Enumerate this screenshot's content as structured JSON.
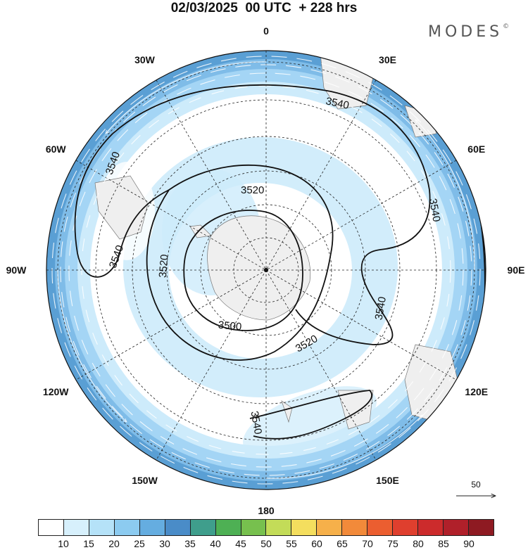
{
  "title": "02/03/2025  00 UTC  + 228 hrs",
  "brand": "MODES",
  "brand_mark": "©",
  "longitude_labels": [
    {
      "text": "0",
      "lon": 0
    },
    {
      "text": "30E",
      "lon": 30
    },
    {
      "text": "60E",
      "lon": 60
    },
    {
      "text": "90E",
      "lon": 90
    },
    {
      "text": "120E",
      "lon": 120
    },
    {
      "text": "150E",
      "lon": 150
    },
    {
      "text": "180",
      "lon": 180
    },
    {
      "text": "150W",
      "lon": -150
    },
    {
      "text": "120W",
      "lon": -120
    },
    {
      "text": "90W",
      "lon": -90
    },
    {
      "text": "60W",
      "lon": -60
    },
    {
      "text": "30W",
      "lon": -30
    }
  ],
  "projection": "south polar stereographic",
  "parallels_deg_south": [
    80,
    70,
    60,
    50,
    40,
    30,
    20
  ],
  "meridians_every_deg": 30,
  "contour_labels": [
    "3540",
    "3520",
    "3500"
  ],
  "reference_vector": {
    "label": "50"
  },
  "colorbar": {
    "colors": [
      "#ffffff",
      "#d7f0fc",
      "#b5e2f8",
      "#8ccbf0",
      "#65ade0",
      "#4a8cc8",
      "#3f9e8c",
      "#4eb054",
      "#77c04e",
      "#c3dc58",
      "#f4de5e",
      "#f6b04a",
      "#f28a3a",
      "#eb5e30",
      "#df3f2e",
      "#cc2b2c",
      "#b0202a",
      "#8e1a22"
    ],
    "tick_labels": [
      "10",
      "15",
      "20",
      "25",
      "30",
      "35",
      "40",
      "45",
      "50",
      "55",
      "60",
      "65",
      "70",
      "75",
      "80",
      "85",
      "90"
    ]
  }
}
